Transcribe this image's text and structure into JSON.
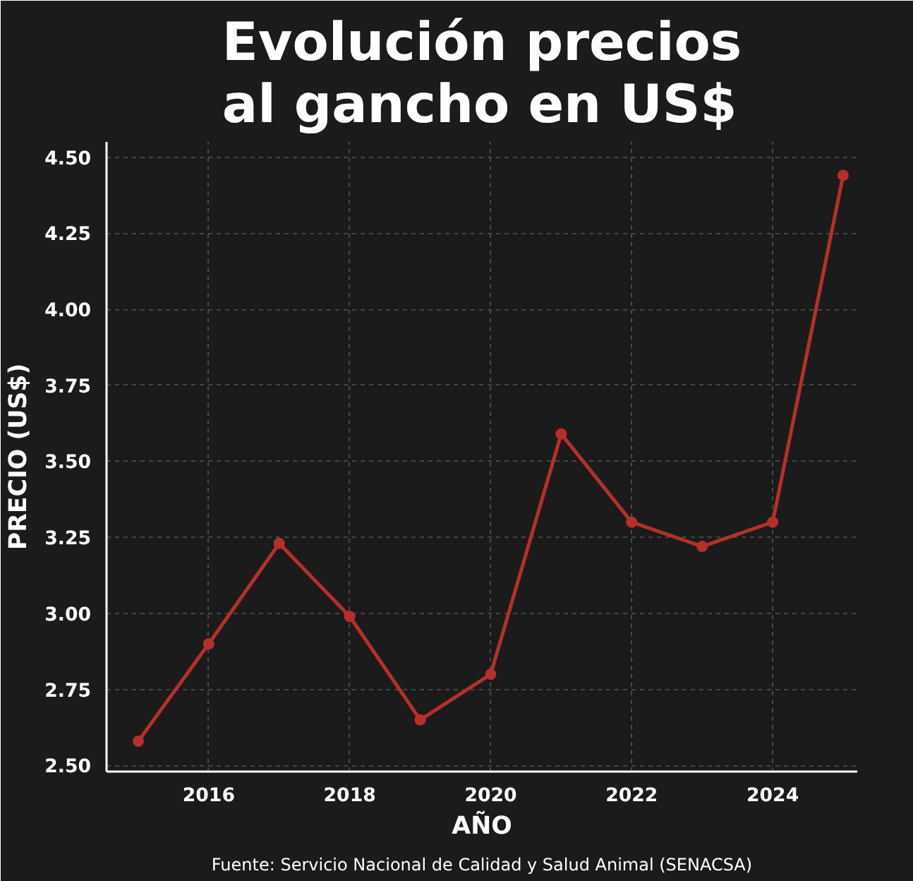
{
  "chart_data": {
    "type": "line",
    "title": "Evolución precios al gancho en US$",
    "xlabel": "AÑO",
    "ylabel": "PRECIO (US$)",
    "x": [
      2015,
      2016,
      2017,
      2018,
      2019,
      2020,
      2021,
      2022,
      2023,
      2024,
      2025
    ],
    "series": [
      {
        "color": "#b5302a",
        "values": [
          2.58,
          2.9,
          3.23,
          2.99,
          2.65,
          2.8,
          3.59,
          3.3,
          3.22,
          3.3,
          4.44
        ]
      }
    ],
    "xlim": [
      2014.55,
      2025.2
    ],
    "xticks": [
      2016,
      2018,
      2020,
      2022,
      2024
    ],
    "ylim": [
      2.48,
      4.55
    ],
    "yticks": [
      {
        "value": 2.5,
        "label": "2.50"
      },
      {
        "value": 2.75,
        "label": "2.75"
      },
      {
        "value": 3.0,
        "label": "3.00"
      },
      {
        "value": 3.25,
        "label": "3.25"
      },
      {
        "value": 3.5,
        "label": "3.50"
      },
      {
        "value": 3.75,
        "label": "3.75"
      },
      {
        "value": 4.0,
        "label": "4.00"
      },
      {
        "value": 4.25,
        "label": "4.25"
      },
      {
        "value": 4.5,
        "label": "4.50"
      }
    ],
    "grid": true,
    "marker": "circle",
    "line_style": "solid",
    "annotations": [
      "Fuente: Servicio Nacional de Calidad y Salud Animal (SENACSA)"
    ]
  }
}
